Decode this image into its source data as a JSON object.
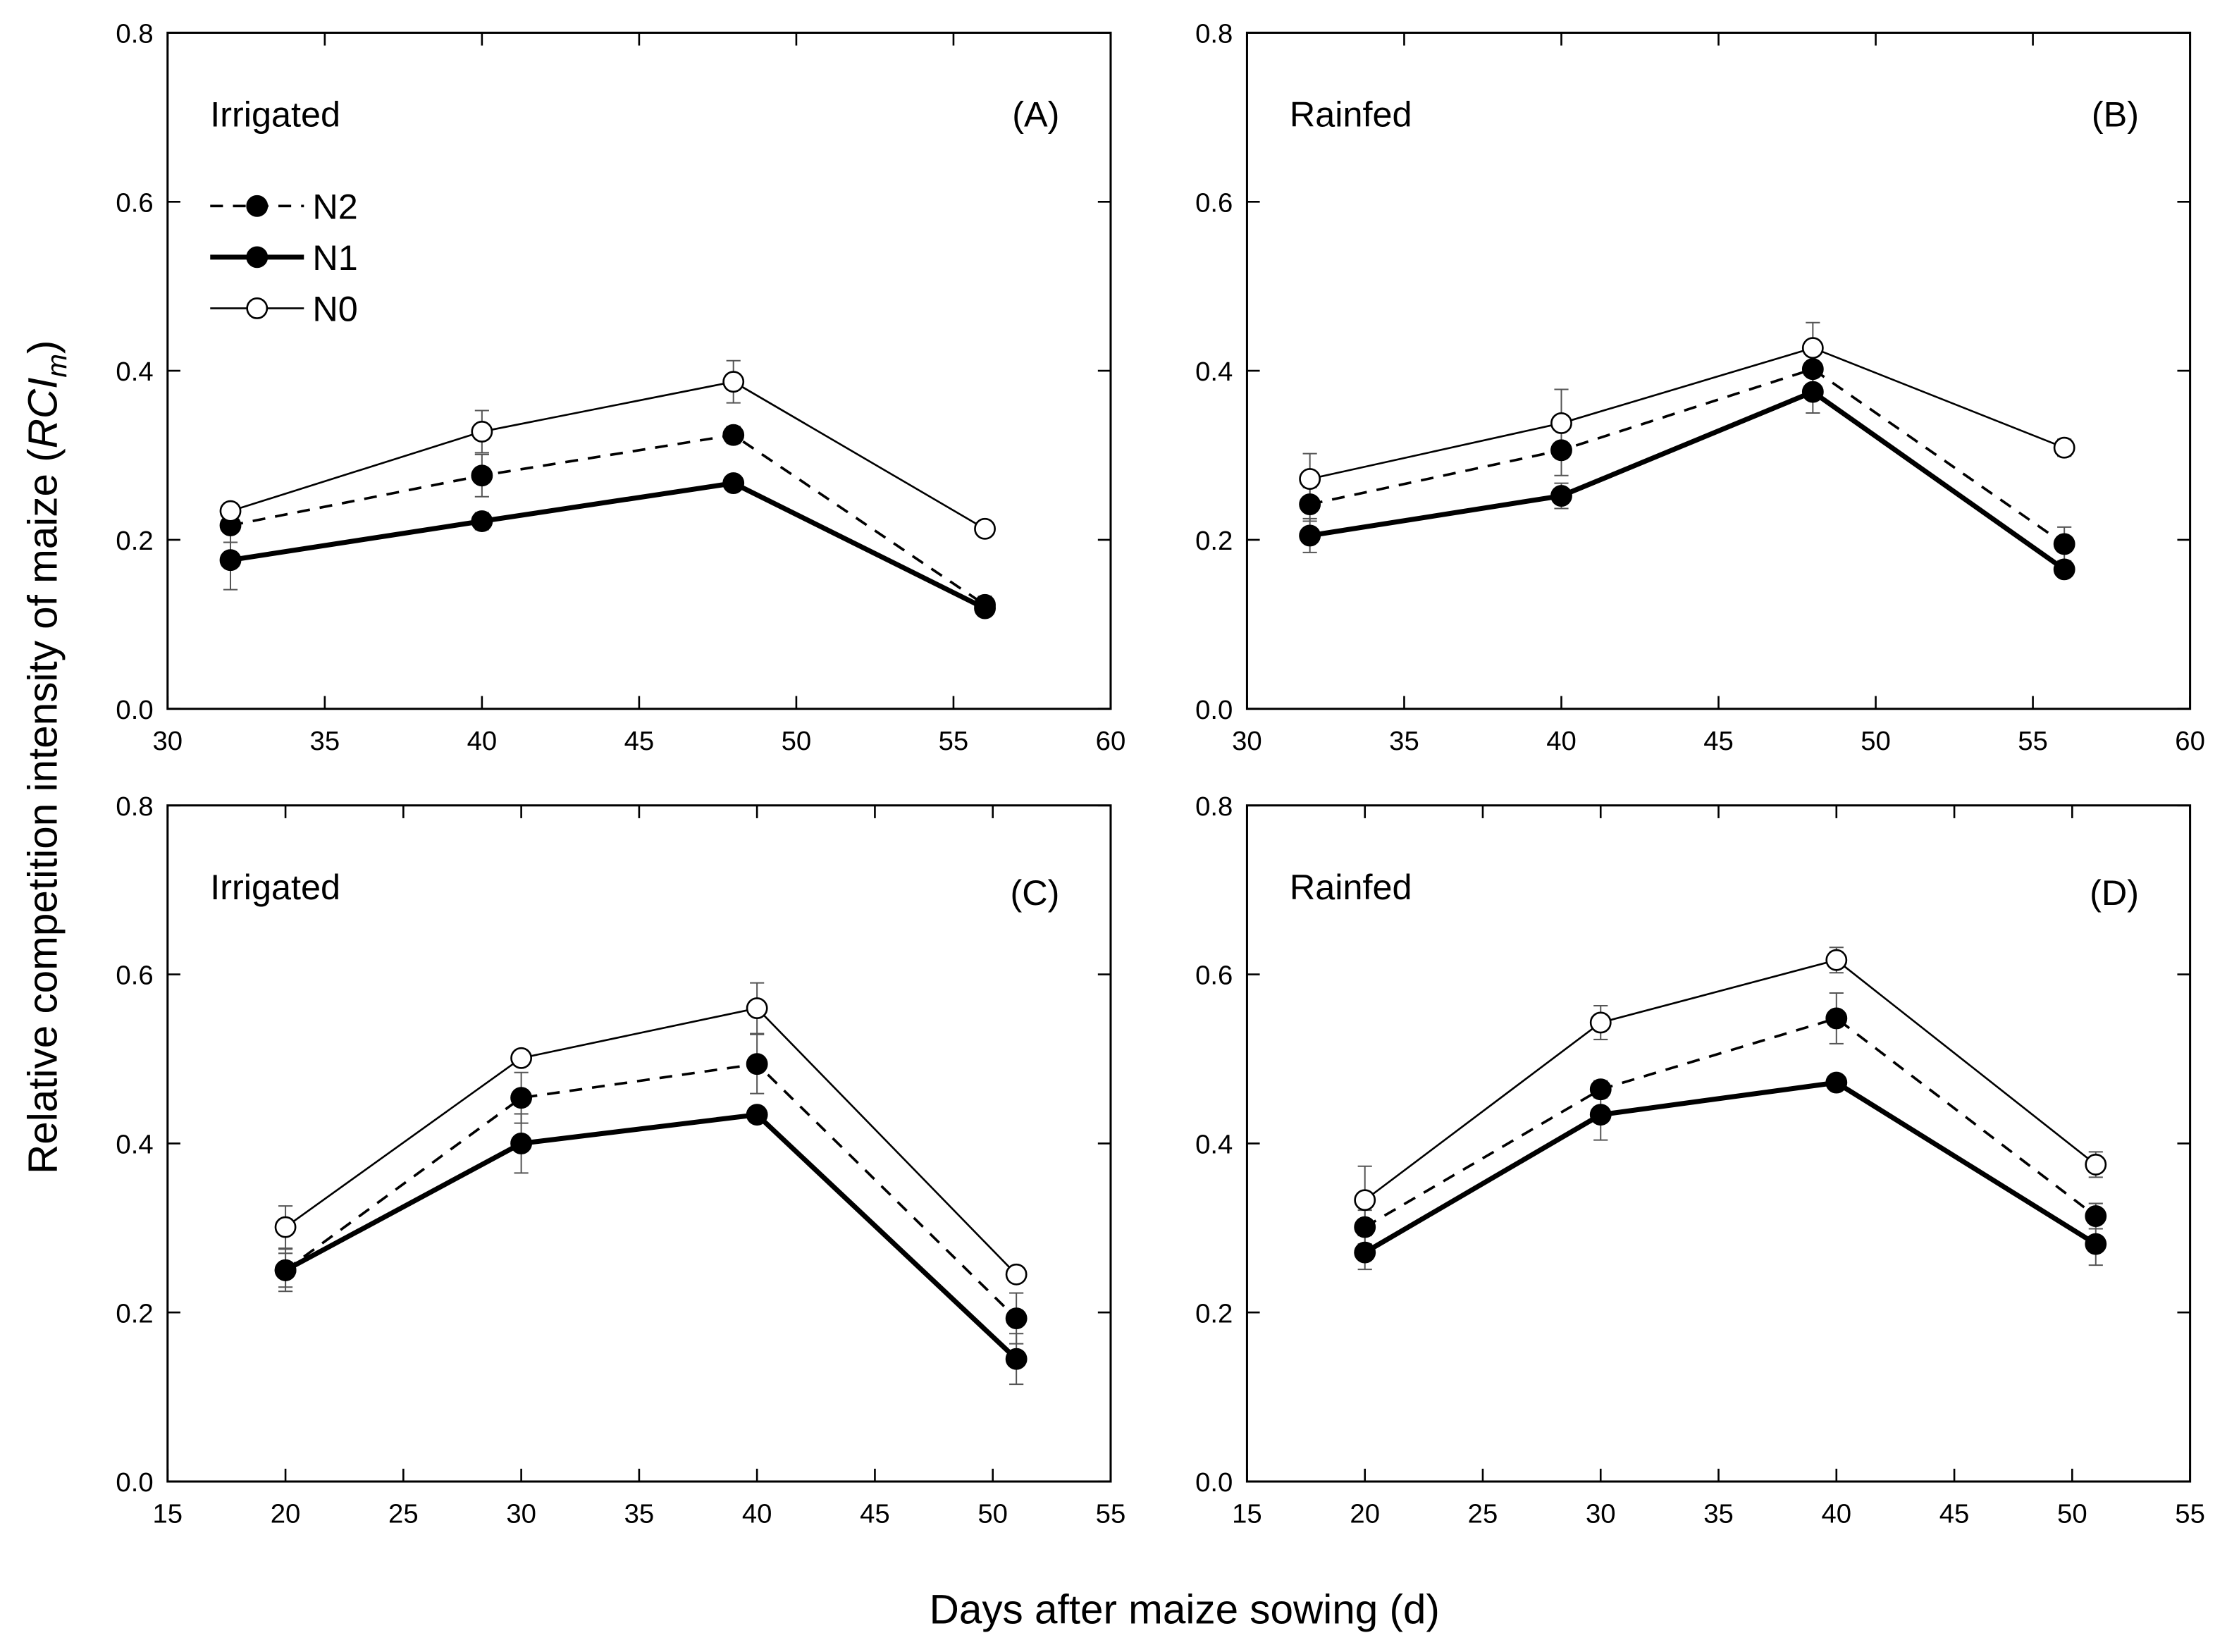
{
  "y_label": [
    "Relative competition intensity of maize (",
    "RCI",
    "m",
    ")"
  ],
  "x_label": "Days after maize sowing (d)",
  "chart_data": [
    {
      "type": "line",
      "annotation": "Irrigated",
      "panel_label": "(A)",
      "legend": "upper left",
      "x": [
        32,
        40,
        48,
        56
      ],
      "xlim": [
        30,
        60
      ],
      "xticks": [
        30,
        35,
        40,
        45,
        50,
        55,
        60
      ],
      "ylim": [
        0,
        0.8
      ],
      "yticks": [
        {
          "value": 0,
          "label": "0.0"
        },
        0.2,
        0.4,
        0.6,
        0.8
      ],
      "series": [
        {
          "name": "N2",
          "color": "#000000",
          "line_style": "dashed",
          "line_width": 1.8,
          "marker_fill": "#000000",
          "values": [
            0.217,
            0.276,
            0.324,
            0.123
          ],
          "errors": [
            0.02,
            0.025,
            0.01,
            0.01
          ]
        },
        {
          "name": "N1",
          "color": "#000000",
          "line_style": "solid",
          "line_width": 3.5,
          "marker_fill": "#000000",
          "values": [
            0.176,
            0.222,
            0.267,
            0.119
          ],
          "errors": [
            0.035,
            0.01,
            0.005,
            0.005
          ]
        },
        {
          "name": "N0",
          "color": "#000000",
          "line_style": "solid",
          "line_width": 1.3,
          "marker_fill": "#ffffff",
          "values": [
            0.234,
            0.328,
            0.387,
            0.213
          ],
          "errors": [
            0.005,
            0.025,
            0.025,
            0.007
          ]
        }
      ]
    },
    {
      "type": "line",
      "annotation": "Rainfed",
      "panel_label": "(B)",
      "x": [
        32,
        40,
        48,
        56
      ],
      "xlim": [
        30,
        60
      ],
      "xticks": [
        30,
        35,
        40,
        45,
        50,
        55,
        60
      ],
      "ylim": [
        0,
        0.8
      ],
      "yticks": [
        {
          "value": 0,
          "label": "0.0"
        },
        0.2,
        0.4,
        0.6,
        0.8
      ],
      "series": [
        {
          "color": "#000000",
          "line_style": "dashed",
          "line_width": 1.8,
          "marker_fill": "#000000",
          "values": [
            0.242,
            0.306,
            0.402,
            0.195
          ],
          "errors": [
            0.02,
            0.03,
            0.02,
            0.02
          ]
        },
        {
          "color": "#000000",
          "line_style": "solid",
          "line_width": 3.5,
          "marker_fill": "#000000",
          "values": [
            0.205,
            0.252,
            0.375,
            0.165
          ],
          "errors": [
            0.02,
            0.015,
            0.025,
            0.005
          ]
        },
        {
          "color": "#000000",
          "line_style": "solid",
          "line_width": 1.3,
          "marker_fill": "#ffffff",
          "values": [
            0.272,
            0.338,
            0.427,
            0.309
          ],
          "errors": [
            0.03,
            0.04,
            0.03,
            0.01
          ]
        }
      ]
    },
    {
      "type": "line",
      "annotation": "Irrigated",
      "panel_label": "(C)",
      "x": [
        20,
        30,
        40,
        51
      ],
      "xlim": [
        15,
        55
      ],
      "xticks": [
        15,
        20,
        25,
        30,
        35,
        40,
        45,
        50,
        55
      ],
      "ylim": [
        0,
        0.8
      ],
      "yticks": [
        {
          "value": 0,
          "label": "0.0"
        },
        0.2,
        0.4,
        0.6,
        0.8
      ],
      "series": [
        {
          "color": "#000000",
          "line_style": "dashed",
          "line_width": 1.8,
          "marker_fill": "#000000",
          "values": [
            0.25,
            0.454,
            0.494,
            0.193
          ],
          "errors": [
            0.02,
            0.03,
            0.035,
            0.03
          ]
        },
        {
          "color": "#000000",
          "line_style": "solid",
          "line_width": 3.5,
          "marker_fill": "#000000",
          "values": [
            0.25,
            0.4,
            0.434,
            0.145
          ],
          "errors": [
            0.025,
            0.035,
            0.005,
            0.03
          ]
        },
        {
          "color": "#000000",
          "line_style": "solid",
          "line_width": 1.3,
          "marker_fill": "#ffffff",
          "values": [
            0.301,
            0.501,
            0.56,
            0.245
          ],
          "errors": [
            0.025,
            0.005,
            0.03,
            0.005
          ]
        }
      ]
    },
    {
      "type": "line",
      "annotation": "Rainfed",
      "panel_label": "(D)",
      "x": [
        20,
        30,
        40,
        51
      ],
      "xlim": [
        15,
        55
      ],
      "xticks": [
        15,
        20,
        25,
        30,
        35,
        40,
        45,
        50,
        55
      ],
      "ylim": [
        0,
        0.8
      ],
      "yticks": [
        {
          "value": 0,
          "label": "0.0"
        },
        0.2,
        0.4,
        0.6,
        0.8
      ],
      "series": [
        {
          "color": "#000000",
          "line_style": "dashed",
          "line_width": 1.8,
          "marker_fill": "#000000",
          "values": [
            0.301,
            0.464,
            0.548,
            0.314
          ],
          "errors": [
            0.02,
            0.01,
            0.03,
            0.015
          ]
        },
        {
          "color": "#000000",
          "line_style": "solid",
          "line_width": 3.5,
          "marker_fill": "#000000",
          "values": [
            0.271,
            0.434,
            0.472,
            0.281
          ],
          "errors": [
            0.02,
            0.03,
            0.005,
            0.025
          ]
        },
        {
          "color": "#000000",
          "line_style": "solid",
          "line_width": 1.3,
          "marker_fill": "#ffffff",
          "values": [
            0.333,
            0.543,
            0.617,
            0.375
          ],
          "errors": [
            0.04,
            0.02,
            0.015,
            0.015
          ]
        }
      ]
    }
  ]
}
